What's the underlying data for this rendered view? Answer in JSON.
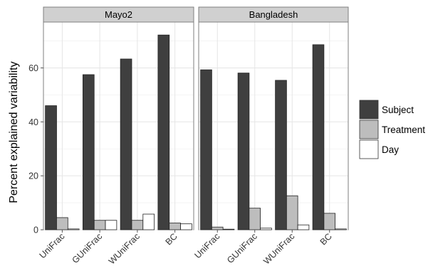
{
  "chart_data": {
    "type": "bar",
    "ylabel": "Percent explained variability",
    "xlabel": "",
    "ylim": [
      0,
      77
    ],
    "yticks": [
      0,
      20,
      40,
      60
    ],
    "grid": true,
    "legend_position": "right",
    "categories": [
      "UniFrac",
      "GUniFrac",
      "WUniFrac",
      "BC"
    ],
    "series_styles": [
      {
        "name": "Subject",
        "color": "#3f3f3f"
      },
      {
        "name": "Treatment",
        "color": "#bdbdbd"
      },
      {
        "name": "Day",
        "color": "#ffffff"
      }
    ],
    "panels": [
      {
        "title": "Mayo2",
        "series": [
          {
            "name": "Subject",
            "values": [
              46,
              57.5,
              63.3,
              72.2
            ]
          },
          {
            "name": "Treatment",
            "values": [
              4.5,
              3.5,
              3.5,
              2.5
            ]
          },
          {
            "name": "Day",
            "values": [
              0.3,
              3.5,
              5.8,
              2.2
            ]
          }
        ]
      },
      {
        "title": "Bangladesh",
        "series": [
          {
            "name": "Subject",
            "values": [
              59.3,
              58.1,
              55.4,
              68.6
            ]
          },
          {
            "name": "Treatment",
            "values": [
              1.0,
              8.0,
              12.6,
              6.1
            ]
          },
          {
            "name": "Day",
            "values": [
              0.2,
              0.6,
              1.8,
              0.3
            ]
          }
        ]
      }
    ]
  }
}
